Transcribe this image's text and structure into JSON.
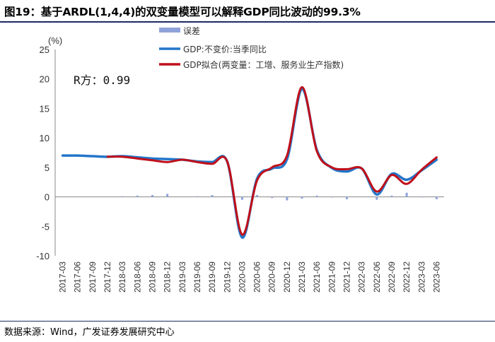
{
  "title": "图19：基于ARDL(1,4,4)的双变量模型可以解释GDP同比波动的99.3%",
  "source": "数据来源：Wind，广发证券发展研究中心",
  "chart_data": {
    "type": "line",
    "title": "图19：基于ARDL(1,4,4)的双变量模型可以解释GDP同比波动的99.3%",
    "ylabel": "(%)",
    "ylim": [
      -10,
      25
    ],
    "yticks": [
      25,
      20,
      15,
      10,
      5,
      0,
      -5,
      -10
    ],
    "annotation": "R方：0.99",
    "categories": [
      "2017-03",
      "2017-06",
      "2017-09",
      "2017-12",
      "2018-03",
      "2018-06",
      "2018-09",
      "2018-12",
      "2019-03",
      "2019-06",
      "2019-09",
      "2019-12",
      "2020-03",
      "2020-06",
      "2020-09",
      "2020-12",
      "2021-03",
      "2021-06",
      "2021-09",
      "2021-12",
      "2022-03",
      "2022-06",
      "2022-09",
      "2022-12",
      "2023-03",
      "2023-06"
    ],
    "series": [
      {
        "name": "误差",
        "kind": "bar",
        "color": "#8fa3d9",
        "values": [
          0.0,
          0.0,
          0.0,
          0.0,
          0.1,
          0.2,
          0.3,
          0.5,
          0.0,
          0.1,
          0.3,
          0.0,
          -0.5,
          0.3,
          -0.2,
          -0.6,
          -0.3,
          0.2,
          -0.1,
          -0.4,
          0.0,
          -0.5,
          0.2,
          0.7,
          -0.1,
          -0.4
        ]
      },
      {
        "name": "GDP:不变价:当季同比",
        "kind": "line",
        "color": "#2376c9",
        "values": [
          7.0,
          7.0,
          6.9,
          6.8,
          6.9,
          6.7,
          6.5,
          6.4,
          6.3,
          6.0,
          5.9,
          6.0,
          -6.9,
          3.1,
          4.8,
          6.4,
          18.3,
          7.9,
          4.9,
          4.3,
          4.8,
          0.4,
          3.9,
          2.9,
          4.5,
          6.3
        ]
      },
      {
        "name": "GDP拟合(两变量：工增、服务业生产指数)",
        "kind": "line",
        "color": "#c0101a",
        "values": [
          null,
          null,
          null,
          6.8,
          6.8,
          6.5,
          6.2,
          5.9,
          6.3,
          5.9,
          5.6,
          6.0,
          -6.4,
          2.8,
          5.0,
          7.0,
          18.6,
          7.7,
          5.0,
          4.7,
          4.8,
          0.9,
          3.7,
          2.2,
          4.6,
          6.7
        ]
      }
    ],
    "legend": "top-center",
    "grid": false
  }
}
